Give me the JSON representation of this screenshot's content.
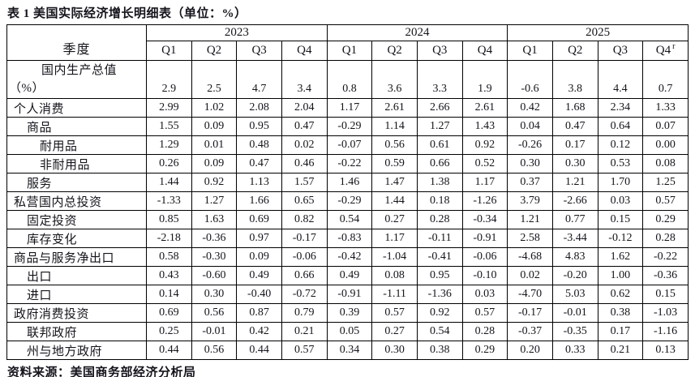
{
  "title": "表 1 美国实际经济增长明细表（单位：%）",
  "source_note": "资料来源：美国商务部经济分析局",
  "colors": {
    "text": "#14141c",
    "border": "#000000",
    "background": "#ffffff"
  },
  "table": {
    "corner_label": "季度",
    "years": [
      "2023",
      "2024",
      "2025"
    ],
    "quarters": [
      {
        "label": "Q1",
        "sup": ""
      },
      {
        "label": "Q2",
        "sup": ""
      },
      {
        "label": "Q3",
        "sup": ""
      },
      {
        "label": "Q4",
        "sup": ""
      },
      {
        "label": "Q1",
        "sup": ""
      },
      {
        "label": "Q2",
        "sup": ""
      },
      {
        "label": "Q3",
        "sup": ""
      },
      {
        "label": "Q4",
        "sup": ""
      },
      {
        "label": "Q1",
        "sup": ""
      },
      {
        "label": "Q2",
        "sup": ""
      },
      {
        "label": "Q3",
        "sup": ""
      },
      {
        "label": "Q4",
        "sup": "r"
      }
    ],
    "gdp_row": {
      "label_line1": "国内生产总值",
      "label_line2": "（%）",
      "values": [
        "2.9",
        "2.5",
        "4.7",
        "3.4",
        "0.8",
        "3.6",
        "3.3",
        "1.9",
        "-0.6",
        "3.8",
        "4.4",
        "0.7"
      ]
    },
    "rows": [
      {
        "label": "个人消费",
        "indent": 0,
        "values": [
          "2.99",
          "1.02",
          "2.08",
          "2.04",
          "1.17",
          "2.61",
          "2.66",
          "2.61",
          "0.42",
          "1.68",
          "2.34",
          "1.33"
        ]
      },
      {
        "label": "商品",
        "indent": 1,
        "values": [
          "1.55",
          "0.09",
          "0.95",
          "0.47",
          "-0.29",
          "1.14",
          "1.27",
          "1.43",
          "0.04",
          "0.47",
          "0.64",
          "0.07"
        ]
      },
      {
        "label": "耐用品",
        "indent": 2,
        "values": [
          "1.29",
          "0.01",
          "0.48",
          "0.02",
          "-0.07",
          "0.56",
          "0.61",
          "0.92",
          "-0.26",
          "0.17",
          "0.12",
          "0.00"
        ]
      },
      {
        "label": "非耐用品",
        "indent": 2,
        "values": [
          "0.26",
          "0.09",
          "0.47",
          "0.46",
          "-0.22",
          "0.59",
          "0.66",
          "0.52",
          "0.30",
          "0.30",
          "0.53",
          "0.08"
        ]
      },
      {
        "label": "服务",
        "indent": 1,
        "values": [
          "1.44",
          "0.92",
          "1.13",
          "1.57",
          "1.46",
          "1.47",
          "1.38",
          "1.17",
          "0.37",
          "1.21",
          "1.70",
          "1.25"
        ]
      },
      {
        "label": "私营国内总投资",
        "indent": 0,
        "values": [
          "-1.33",
          "1.27",
          "1.66",
          "0.65",
          "-0.29",
          "1.44",
          "0.18",
          "-1.26",
          "3.79",
          "-2.66",
          "0.03",
          "0.57"
        ]
      },
      {
        "label": "固定投资",
        "indent": 1,
        "values": [
          "0.85",
          "1.63",
          "0.69",
          "0.82",
          "0.54",
          "0.27",
          "0.28",
          "-0.34",
          "1.21",
          "0.77",
          "0.15",
          "0.29"
        ]
      },
      {
        "label": "库存变化",
        "indent": 1,
        "values": [
          "-2.18",
          "-0.36",
          "0.97",
          "-0.17",
          "-0.83",
          "1.17",
          "-0.11",
          "-0.91",
          "2.58",
          "-3.44",
          "-0.12",
          "0.28"
        ]
      },
      {
        "label": "商品与服务净出口",
        "indent": 0,
        "values": [
          "0.58",
          "-0.30",
          "0.09",
          "-0.06",
          "-0.42",
          "-1.04",
          "-0.41",
          "-0.06",
          "-4.68",
          "4.83",
          "1.62",
          "-0.22"
        ]
      },
      {
        "label": "出口",
        "indent": 1,
        "values": [
          "0.43",
          "-0.60",
          "0.49",
          "0.66",
          "0.49",
          "0.08",
          "0.95",
          "-0.10",
          "0.02",
          "-0.20",
          "1.00",
          "-0.36"
        ]
      },
      {
        "label": "进口",
        "indent": 1,
        "values": [
          "0.14",
          "0.30",
          "-0.40",
          "-0.72",
          "-0.91",
          "-1.11",
          "-1.36",
          "0.03",
          "-4.70",
          "5.03",
          "0.62",
          "0.15"
        ]
      },
      {
        "label": "政府消费投资",
        "indent": 0,
        "values": [
          "0.69",
          "0.56",
          "0.87",
          "0.79",
          "0.39",
          "0.57",
          "0.92",
          "0.57",
          "-0.17",
          "-0.01",
          "0.38",
          "-1.03"
        ]
      },
      {
        "label": "联邦政府",
        "indent": 1,
        "values": [
          "0.25",
          "-0.01",
          "0.42",
          "0.21",
          "0.05",
          "0.27",
          "0.54",
          "0.28",
          "-0.37",
          "-0.35",
          "0.17",
          "-1.16"
        ]
      },
      {
        "label": "州与地方政府",
        "indent": 1,
        "values": [
          "0.44",
          "0.56",
          "0.44",
          "0.57",
          "0.34",
          "0.30",
          "0.38",
          "0.29",
          "0.20",
          "0.33",
          "0.21",
          "0.13"
        ]
      }
    ]
  }
}
